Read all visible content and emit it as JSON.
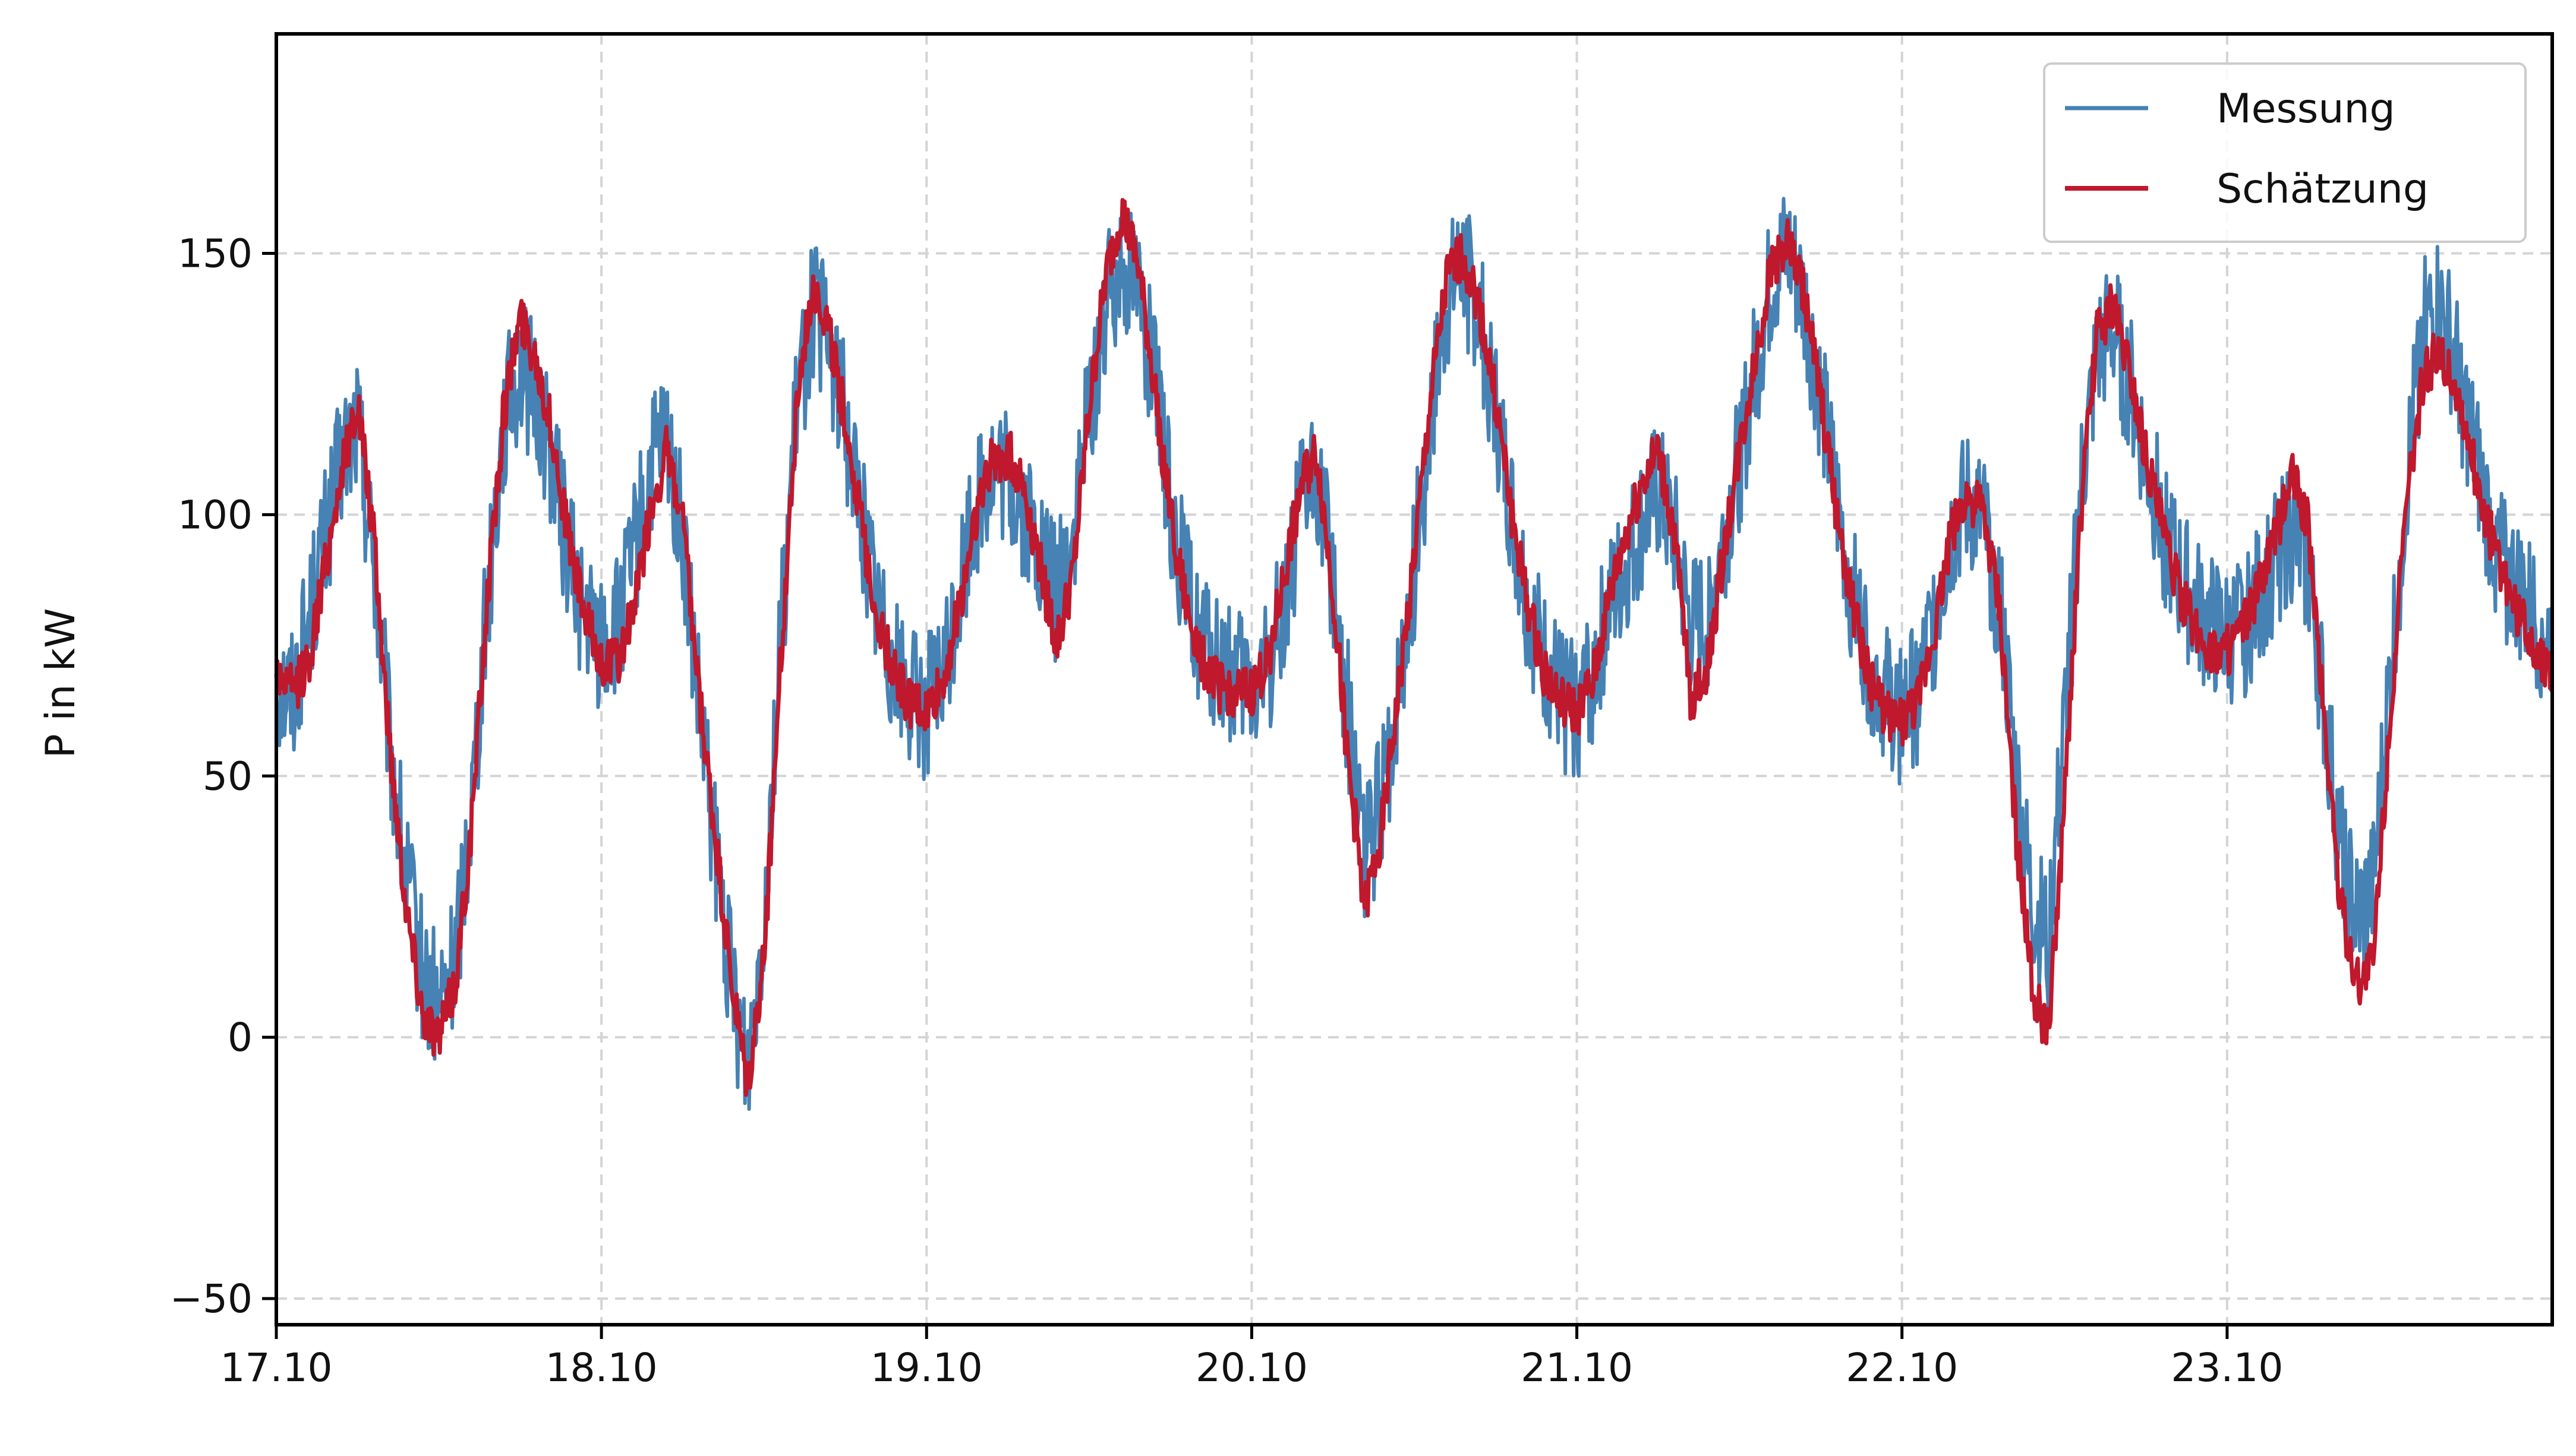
{
  "chart_data": {
    "type": "line",
    "title": "",
    "xlabel": "",
    "ylabel": "P in kW",
    "x_unit": "day",
    "xlim": [
      0,
      7.0
    ],
    "ylim": [
      -55,
      192
    ],
    "x_ticks": [
      {
        "value": 0,
        "label": "17.10"
      },
      {
        "value": 1,
        "label": "18.10"
      },
      {
        "value": 2,
        "label": "19.10"
      },
      {
        "value": 3,
        "label": "20.10"
      },
      {
        "value": 4,
        "label": "21.10"
      },
      {
        "value": 5,
        "label": "22.10"
      },
      {
        "value": 6,
        "label": "23.10"
      }
    ],
    "y_ticks": [
      -50,
      0,
      50,
      100,
      150
    ],
    "grid": true,
    "legend_position": "top-right",
    "colors": {
      "Messung": "#4682b4",
      "Schätzung": "#c0182c"
    },
    "series": [
      {
        "name": "Messung",
        "color": "#4682b4",
        "noise": 14,
        "x": [
          0.0,
          0.05,
          0.1,
          0.15,
          0.2,
          0.25,
          0.3,
          0.35,
          0.4,
          0.45,
          0.5,
          0.55,
          0.6,
          0.65,
          0.7,
          0.75,
          0.8,
          0.85,
          0.9,
          0.95,
          1.0,
          1.05,
          1.1,
          1.15,
          1.2,
          1.25,
          1.3,
          1.35,
          1.4,
          1.45,
          1.5,
          1.55,
          1.6,
          1.65,
          1.7,
          1.75,
          1.8,
          1.85,
          1.9,
          1.95,
          2.0,
          2.05,
          2.1,
          2.15,
          2.2,
          2.25,
          2.3,
          2.35,
          2.4,
          2.45,
          2.5,
          2.55,
          2.6,
          2.65,
          2.7,
          2.75,
          2.8,
          2.85,
          2.9,
          2.95,
          3.0,
          3.05,
          3.1,
          3.15,
          3.2,
          3.25,
          3.3,
          3.35,
          3.4,
          3.45,
          3.5,
          3.55,
          3.6,
          3.65,
          3.7,
          3.75,
          3.8,
          3.85,
          3.9,
          3.95,
          4.0,
          4.05,
          4.1,
          4.15,
          4.2,
          4.25,
          4.3,
          4.35,
          4.4,
          4.45,
          4.5,
          4.55,
          4.6,
          4.65,
          4.7,
          4.75,
          4.8,
          4.85,
          4.9,
          4.95,
          5.0,
          5.05,
          5.1,
          5.15,
          5.2,
          5.25,
          5.3,
          5.35,
          5.4,
          5.45,
          5.5,
          5.55,
          5.6,
          5.65,
          5.7,
          5.75,
          5.8,
          5.85,
          5.9,
          5.95,
          6.0,
          6.05,
          6.1,
          6.15,
          6.2,
          6.25,
          6.3,
          6.35,
          6.4,
          6.45,
          6.5,
          6.55,
          6.6,
          6.65,
          6.7,
          6.75,
          6.8,
          6.85,
          6.9,
          6.95,
          7.0
        ],
        "y": [
          68,
          66,
          80,
          95,
          110,
          118,
          90,
          55,
          30,
          12,
          5,
          15,
          45,
          85,
          118,
          128,
          122,
          110,
          92,
          80,
          75,
          78,
          92,
          108,
          115,
          95,
          62,
          35,
          10,
          -5,
          25,
          75,
          120,
          140,
          132,
          118,
          100,
          82,
          72,
          65,
          63,
          68,
          85,
          102,
          108,
          106,
          100,
          92,
          85,
          95,
          120,
          138,
          150,
          145,
          125,
          102,
          85,
          75,
          70,
          68,
          66,
          70,
          85,
          100,
          108,
          88,
          60,
          35,
          45,
          65,
          90,
          118,
          140,
          148,
          138,
          120,
          100,
          82,
          72,
          65,
          63,
          70,
          82,
          90,
          98,
          104,
          95,
          78,
          80,
          95,
          110,
          128,
          145,
          150,
          140,
          122,
          102,
          84,
          72,
          65,
          62,
          66,
          80,
          96,
          102,
          98,
          84,
          50,
          25,
          18,
          60,
          105,
          130,
          135,
          125,
          110,
          98,
          88,
          82,
          78,
          76,
          78,
          84,
          92,
          96,
          88,
          62,
          35,
          22,
          28,
          68,
          105,
          135,
          140,
          130,
          115,
          100,
          90,
          85,
          80,
          76
        ]
      },
      {
        "name": "Schätzung",
        "color": "#c0182c",
        "noise": 5,
        "x": [
          0.0,
          0.05,
          0.1,
          0.15,
          0.2,
          0.25,
          0.3,
          0.35,
          0.4,
          0.45,
          0.5,
          0.55,
          0.6,
          0.65,
          0.7,
          0.75,
          0.8,
          0.85,
          0.9,
          0.95,
          1.0,
          1.05,
          1.1,
          1.15,
          1.2,
          1.25,
          1.3,
          1.35,
          1.4,
          1.45,
          1.5,
          1.55,
          1.6,
          1.65,
          1.7,
          1.75,
          1.8,
          1.85,
          1.9,
          1.95,
          2.0,
          2.05,
          2.1,
          2.15,
          2.2,
          2.25,
          2.3,
          2.35,
          2.4,
          2.45,
          2.5,
          2.55,
          2.6,
          2.65,
          2.7,
          2.75,
          2.8,
          2.85,
          2.9,
          2.95,
          3.0,
          3.05,
          3.1,
          3.15,
          3.2,
          3.25,
          3.3,
          3.35,
          3.4,
          3.45,
          3.5,
          3.55,
          3.6,
          3.65,
          3.7,
          3.75,
          3.8,
          3.85,
          3.9,
          3.95,
          4.0,
          4.05,
          4.1,
          4.15,
          4.2,
          4.25,
          4.3,
          4.35,
          4.4,
          4.45,
          4.5,
          4.55,
          4.6,
          4.65,
          4.7,
          4.75,
          4.8,
          4.85,
          4.9,
          4.95,
          5.0,
          5.05,
          5.1,
          5.15,
          5.2,
          5.25,
          5.3,
          5.35,
          5.4,
          5.45,
          5.5,
          5.55,
          5.6,
          5.65,
          5.7,
          5.75,
          5.8,
          5.85,
          5.9,
          5.95,
          6.0,
          6.05,
          6.1,
          6.15,
          6.2,
          6.25,
          6.3,
          6.35,
          6.4,
          6.45,
          6.5,
          6.55,
          6.6,
          6.65,
          6.7,
          6.75,
          6.8,
          6.85,
          6.9,
          6.95,
          7.0
        ],
        "y": [
          70,
          66,
          72,
          90,
          108,
          122,
          95,
          55,
          25,
          5,
          0,
          10,
          40,
          85,
          120,
          138,
          130,
          115,
          95,
          80,
          72,
          72,
          82,
          100,
          112,
          98,
          65,
          38,
          10,
          -10,
          15,
          70,
          120,
          145,
          135,
          118,
          98,
          80,
          70,
          64,
          62,
          68,
          82,
          100,
          110,
          112,
          105,
          90,
          75,
          88,
          120,
          145,
          158,
          148,
          125,
          100,
          82,
          72,
          67,
          66,
          66,
          72,
          88,
          105,
          112,
          85,
          50,
          25,
          40,
          65,
          92,
          122,
          145,
          150,
          140,
          122,
          100,
          82,
          70,
          64,
          62,
          68,
          84,
          96,
          106,
          112,
          96,
          65,
          70,
          92,
          112,
          130,
          148,
          152,
          142,
          122,
          100,
          82,
          68,
          62,
          60,
          64,
          78,
          96,
          104,
          100,
          82,
          40,
          10,
          0,
          45,
          100,
          135,
          140,
          128,
          112,
          98,
          86,
          78,
          74,
          74,
          78,
          86,
          96,
          108,
          98,
          60,
          25,
          10,
          15,
          60,
          100,
          125,
          132,
          125,
          112,
          98,
          88,
          80,
          74,
          70
        ]
      }
    ]
  }
}
